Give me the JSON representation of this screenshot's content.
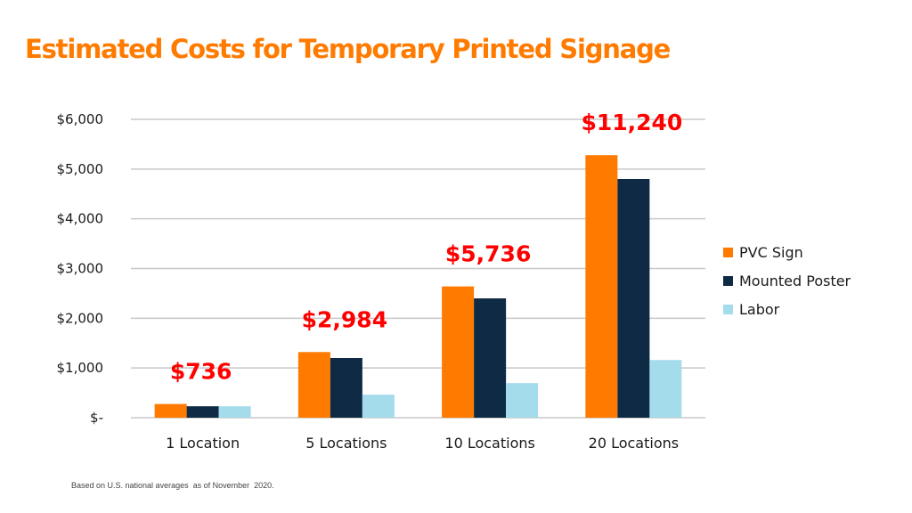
{
  "title": "Estimated Costs for Temporary Printed Signage",
  "footnote": "Based on U.S. national averages  as of November  2020.",
  "colors": {
    "title": "#FF7B00",
    "total": "#FF0000",
    "grid": "#C8C8C8"
  },
  "chart_data": {
    "type": "bar",
    "title": "Estimated Costs for Temporary Printed Signage",
    "xlabel": "",
    "ylabel": "",
    "ylim": [
      0,
      6000
    ],
    "yticks": [
      0,
      1000,
      2000,
      3000,
      4000,
      5000,
      6000
    ],
    "ytick_labels": [
      "$-",
      "$1,000",
      "$2,000",
      "$3,000",
      "$4,000",
      "$5,000",
      "$6,000"
    ],
    "grid": true,
    "legend_position": "right",
    "categories": [
      "1 Location",
      "5 Locations",
      "10 Locations",
      "20 Locations"
    ],
    "series": [
      {
        "name": "PVC Sign",
        "color": "#FF7B00",
        "values": [
          276,
          1320,
          2640,
          5280
        ]
      },
      {
        "name": "Mounted Poster",
        "color": "#0F2A45",
        "values": [
          230,
          1200,
          2400,
          4800
        ]
      },
      {
        "name": "Labor",
        "color": "#A5DCEC",
        "values": [
          230,
          464,
          696,
          1160
        ]
      }
    ],
    "totals": [
      "$736",
      "$2,984",
      "$5,736",
      "$11,240"
    ]
  }
}
